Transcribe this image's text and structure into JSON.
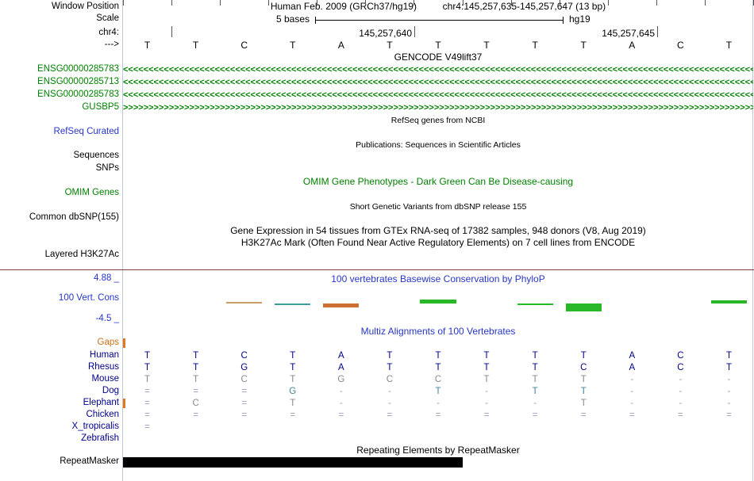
{
  "header": {
    "window_position_label": "Window Position",
    "assembly_title": "Human Feb. 2009 (GRCh37/hg19)",
    "position_title": "chr4:145,257,635-145,257,647 (13 bp)",
    "scale_label": "Scale",
    "scale_value": "5 bases",
    "scale_genome": "hg19",
    "chrom_label": "chr4:",
    "strand_arrow": "--->"
  },
  "ruler": {
    "extra_tick_x": 216,
    "coord_labels": [
      {
        "text": "145,257,640",
        "tick_x": 522
      },
      {
        "text": "145,257,645",
        "tick_x": 828
      }
    ]
  },
  "bases": [
    "T",
    "T",
    "C",
    "T",
    "A",
    "T",
    "T",
    "T",
    "T",
    "T",
    "A",
    "C",
    "T"
  ],
  "gencode": {
    "title": "GENCODE V49lift37",
    "genes": [
      {
        "label": "ENSG00000285783",
        "direction": "left"
      },
      {
        "label": "ENSG00000285713",
        "direction": "left"
      },
      {
        "label": "ENSG00000285783",
        "direction": "left"
      },
      {
        "label": "GUSBP5",
        "direction": "right"
      }
    ]
  },
  "section_titles": {
    "refseq": "RefSeq genes from NCBI",
    "publications": "Publications: Sequences in Scientific Articles",
    "omim": "OMIM Gene Phenotypes - Dark Green Can Be Disease-causing",
    "dbsnp": "Short Genetic Variants from dbSNP release 155",
    "gtex": "Gene Expression in 54 tissues from GTEx RNA-seq of 17382 samples, 948 donors (V8, Aug 2019)",
    "h3k27ac": "H3K27Ac Mark (Often Found Near Active Regulatory Elements) on 7 cell lines from ENCODE",
    "repeatmasker": "Repeating Elements by RepeatMasker"
  },
  "track_labels": {
    "refseq_curated": "RefSeq Curated",
    "sequences": "Sequences",
    "snps": "SNPs",
    "omim_genes": "OMIM Genes",
    "dbsnp": "Common dbSNP(155)",
    "h3k27ac": "Layered H3K27Ac",
    "repeatmasker": "RepeatMasker"
  },
  "conservation": {
    "title": "100 vertebrates Basewise Conservation by PhyloP",
    "track_label": "100 Vert. Cons",
    "max_label": "4.88 _",
    "min_label": "-4.5 _",
    "ymax": 4.88,
    "ymin": -4.5,
    "bars": [
      {
        "col": 3,
        "value": 0.3,
        "color": "#c8a064"
      },
      {
        "col": 4,
        "value": -0.4,
        "color": "#3d9e9e"
      },
      {
        "col": 5,
        "value": -0.9,
        "color": "#cc7034"
      },
      {
        "col": 7,
        "value": 0.9,
        "color": "#28b828"
      },
      {
        "col": 9,
        "value": -0.2,
        "color": "#28b828"
      },
      {
        "col": 10,
        "value": -1.8,
        "color": "#28b828"
      },
      {
        "col": 13,
        "value": 0.7,
        "color": "#28b828"
      }
    ]
  },
  "multiz": {
    "title": "Multiz Alignments of 100 Vertebrates",
    "gaps_label": "Gaps",
    "gaps_insert_mark": true,
    "gap_color": "#98a0bc",
    "rows": [
      {
        "name": "Human",
        "letter_color": "#00008b",
        "bases": [
          "T",
          "T",
          "C",
          "T",
          "A",
          "T",
          "T",
          "T",
          "T",
          "T",
          "A",
          "C",
          "T"
        ]
      },
      {
        "name": "Rhesus",
        "letter_color": "#00008b",
        "bases": [
          "T",
          "T",
          "G",
          "T",
          "A",
          "T",
          "T",
          "T",
          "T",
          "C",
          "A",
          "C",
          "T"
        ]
      },
      {
        "name": "Mouse",
        "letter_color": "#8a8a8a",
        "bases": [
          "T",
          "T",
          "C",
          "T",
          "G",
          "C",
          "C",
          "T",
          "T",
          "T",
          "-",
          "-",
          "-"
        ]
      },
      {
        "name": "Dog",
        "letter_color": "#44849c",
        "bases": [
          "=",
          "=",
          "=",
          "G",
          "-",
          "-",
          "T",
          "-",
          "T",
          "T",
          "-",
          "-",
          "-"
        ]
      },
      {
        "name": "Elephant",
        "letter_color": "#8a8a8a",
        "insert_mark": true,
        "bases": [
          "=",
          "C",
          "=",
          "T",
          "-",
          "-",
          "-",
          "-",
          "-",
          "T",
          "-",
          "-",
          "-"
        ]
      },
      {
        "name": "Chicken",
        "letter_color": "#00008b",
        "bases": [
          "=",
          "=",
          "=",
          "=",
          "=",
          "=",
          "=",
          "=",
          "=",
          "=",
          "=",
          "=",
          "="
        ]
      },
      {
        "name": "X_tropicalis",
        "letter_color": "#00008b",
        "bases": [
          "=",
          "",
          "",
          "",
          "",
          "",
          "",
          "",
          "",
          "",
          "",
          "",
          ""
        ]
      },
      {
        "name": "Zebrafish",
        "letter_color": "#00008b",
        "bases": [
          "",
          "",
          "",
          "",
          "",
          "",
          "",
          "",
          "",
          "",
          "",
          "",
          ""
        ]
      }
    ]
  },
  "repeatmasker": {
    "bar_start_col": 1,
    "bar_end_col": 7
  }
}
